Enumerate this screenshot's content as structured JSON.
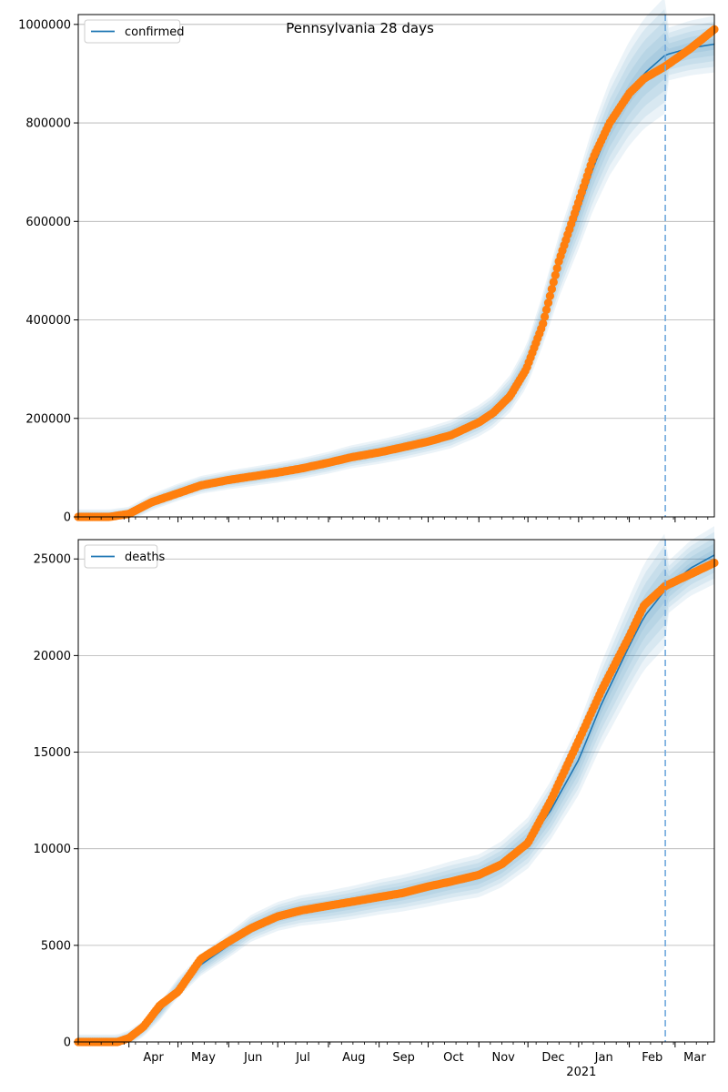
{
  "chart_data": [
    {
      "type": "line",
      "title": "Pennsylvania 28 days",
      "xlabel": "",
      "ylabel": "",
      "ylim": [
        0,
        1020000
      ],
      "yticks": [
        0,
        200000,
        400000,
        600000,
        800000,
        1000000
      ],
      "x_range": [
        "2020-03-01",
        "2021-03-25"
      ],
      "forecast_start": "2021-02-23",
      "grid": "horizontal",
      "legend_placement": "top-left",
      "colors": {
        "fit": "#1f77b4",
        "observed": "#ff7f0e",
        "band": "#1f77b4",
        "forecast_line": "#6fa8dc"
      },
      "series": [
        {
          "name": "confirmed",
          "kind": "fit",
          "dates": [
            "2020-03-01",
            "2020-03-20",
            "2020-04-01",
            "2020-04-15",
            "2020-05-01",
            "2020-05-15",
            "2020-06-01",
            "2020-06-15",
            "2020-07-01",
            "2020-07-15",
            "2020-08-01",
            "2020-08-15",
            "2020-09-01",
            "2020-09-15",
            "2020-10-01",
            "2020-10-15",
            "2020-11-01",
            "2020-11-10",
            "2020-11-20",
            "2020-11-30",
            "2020-12-10",
            "2020-12-20",
            "2021-01-01",
            "2021-01-10",
            "2021-01-20",
            "2021-02-01",
            "2021-02-10",
            "2021-02-23",
            "2021-03-10",
            "2021-03-25"
          ],
          "values": [
            0,
            0,
            5000,
            30000,
            50000,
            65000,
            75000,
            82000,
            90000,
            98000,
            110000,
            122000,
            132000,
            142000,
            155000,
            168000,
            195000,
            215000,
            250000,
            305000,
            400000,
            510000,
            620000,
            710000,
            790000,
            860000,
            900000,
            938000,
            952000,
            960000
          ]
        },
        {
          "kind": "observed",
          "dates": [
            "2020-03-01",
            "2020-03-20",
            "2020-04-01",
            "2020-04-15",
            "2020-05-01",
            "2020-05-15",
            "2020-06-01",
            "2020-06-15",
            "2020-07-01",
            "2020-07-15",
            "2020-08-01",
            "2020-08-15",
            "2020-09-01",
            "2020-09-15",
            "2020-10-01",
            "2020-10-15",
            "2020-11-01",
            "2020-11-10",
            "2020-11-20",
            "2020-11-30",
            "2020-12-10",
            "2020-12-20",
            "2021-01-01",
            "2021-01-10",
            "2021-01-20",
            "2021-02-01",
            "2021-02-10",
            "2021-02-23",
            "2021-03-10",
            "2021-03-25"
          ],
          "values": [
            0,
            0,
            6000,
            30000,
            48000,
            64000,
            75000,
            82000,
            90000,
            98000,
            110000,
            121000,
            131000,
            141000,
            153000,
            166000,
            192000,
            212000,
            245000,
            300000,
            390000,
            520000,
            640000,
            730000,
            800000,
            860000,
            890000,
            915000,
            950000,
            990000
          ]
        }
      ]
    },
    {
      "type": "line",
      "title": "",
      "xlabel": "",
      "ylabel": "",
      "ylim": [
        0,
        26000
      ],
      "yticks": [
        0,
        5000,
        10000,
        15000,
        20000,
        25000
      ],
      "x_range": [
        "2020-03-01",
        "2021-03-25"
      ],
      "x_tick_labels": [
        "Apr",
        "May",
        "Jun",
        "Jul",
        "Aug",
        "Sep",
        "Oct",
        "Nov",
        "Dec",
        "Jan",
        "Feb",
        "Mar"
      ],
      "x_year_label": "2021",
      "forecast_start": "2021-02-23",
      "grid": "horizontal",
      "legend_placement": "top-left",
      "colors": {
        "fit": "#1f77b4",
        "observed": "#ff7f0e",
        "band": "#1f77b4",
        "forecast_line": "#6fa8dc"
      },
      "series": [
        {
          "name": "deaths",
          "kind": "fit",
          "dates": [
            "2020-03-01",
            "2020-03-25",
            "2020-04-01",
            "2020-04-10",
            "2020-04-20",
            "2020-05-01",
            "2020-05-15",
            "2020-06-01",
            "2020-06-15",
            "2020-07-01",
            "2020-07-15",
            "2020-08-01",
            "2020-08-15",
            "2020-09-01",
            "2020-09-15",
            "2020-10-01",
            "2020-10-15",
            "2020-11-01",
            "2020-11-15",
            "2020-12-01",
            "2020-12-15",
            "2021-01-01",
            "2021-01-15",
            "2021-02-01",
            "2021-02-10",
            "2021-02-23",
            "2021-03-10",
            "2021-03-25"
          ],
          "values": [
            0,
            0,
            200,
            700,
            1600,
            2800,
            4000,
            5000,
            5900,
            6500,
            6800,
            7000,
            7200,
            7500,
            7700,
            8000,
            8300,
            8600,
            9200,
            10300,
            12000,
            14600,
            17500,
            20500,
            22000,
            23400,
            24500,
            25200
          ]
        },
        {
          "kind": "observed",
          "dates": [
            "2020-03-01",
            "2020-03-25",
            "2020-04-01",
            "2020-04-10",
            "2020-04-20",
            "2020-05-01",
            "2020-05-15",
            "2020-06-01",
            "2020-06-15",
            "2020-07-01",
            "2020-07-15",
            "2020-08-01",
            "2020-08-15",
            "2020-09-01",
            "2020-09-15",
            "2020-10-01",
            "2020-10-15",
            "2020-11-01",
            "2020-11-15",
            "2020-12-01",
            "2020-12-15",
            "2021-01-01",
            "2021-01-15",
            "2021-02-01",
            "2021-02-10",
            "2021-02-23",
            "2021-03-10",
            "2021-03-25"
          ],
          "values": [
            0,
            0,
            200,
            800,
            1900,
            2600,
            4300,
            5200,
            5900,
            6500,
            6800,
            7050,
            7250,
            7500,
            7700,
            8050,
            8300,
            8650,
            9200,
            10300,
            12500,
            15600,
            18200,
            21000,
            22600,
            23600,
            24200,
            24800
          ]
        }
      ]
    }
  ]
}
